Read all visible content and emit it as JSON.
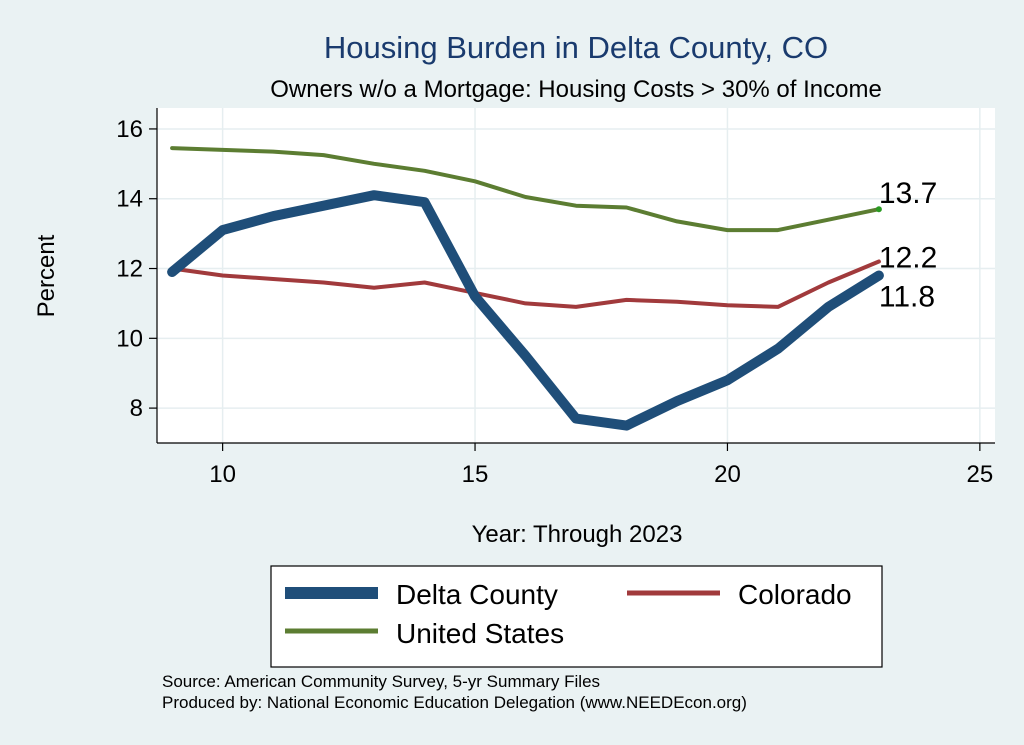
{
  "chart_data": {
    "type": "line",
    "title": "Housing Burden in Delta County, CO",
    "subtitle": "Owners w/o a Mortgage: Housing Costs > 30% of Income",
    "xlabel": "Year: Through 2023",
    "ylabel": "Percent",
    "xlim": [
      8.7,
      25.3
    ],
    "ylim": [
      7.0,
      16.6
    ],
    "xticks": [
      10,
      15,
      20,
      25
    ],
    "yticks": [
      8,
      10,
      12,
      14,
      16
    ],
    "grid": true,
    "x": [
      9,
      10,
      11,
      12,
      13,
      14,
      15,
      16,
      17,
      18,
      19,
      20,
      21,
      22,
      23
    ],
    "series": [
      {
        "name": "Delta County",
        "color": "#1f4e79",
        "values": [
          11.9,
          13.1,
          13.5,
          13.8,
          14.1,
          13.9,
          11.2,
          9.5,
          7.7,
          7.5,
          8.2,
          8.8,
          9.7,
          10.9,
          11.8
        ],
        "end_label": "11.8"
      },
      {
        "name": "Colorado",
        "color": "#a13a3c",
        "values": [
          12.0,
          11.8,
          11.7,
          11.6,
          11.45,
          11.6,
          11.3,
          11.0,
          10.9,
          11.1,
          11.05,
          10.95,
          10.9,
          11.6,
          12.2
        ],
        "end_label": "12.2"
      },
      {
        "name": "United States",
        "color": "#5c7d32",
        "values": [
          15.45,
          15.4,
          15.35,
          15.25,
          15.0,
          14.8,
          14.5,
          14.05,
          13.8,
          13.75,
          13.35,
          13.1,
          13.1,
          13.4,
          13.7
        ],
        "end_label": "13.7"
      }
    ],
    "legend": {
      "placement": "bottom",
      "items": [
        "Delta County",
        "Colorado",
        "United States"
      ]
    }
  },
  "notes": {
    "source": "Source: American Community Survey, 5-yr Summary Files",
    "producer": "Produced by: National Economic Education Delegation (www.NEEDEcon.org)"
  },
  "colors": {
    "background": "#eaf2f3",
    "plot_background": "#ffffff",
    "grid": "#e6eef0",
    "title": "#1a3b6e"
  }
}
